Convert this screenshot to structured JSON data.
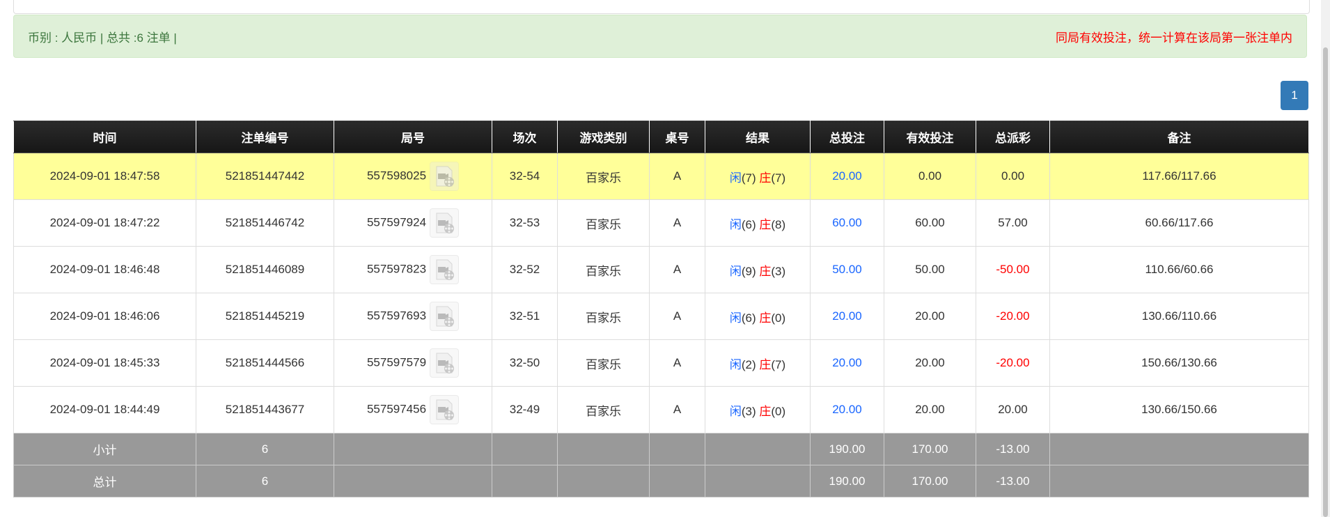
{
  "summary": {
    "left": "币别 : 人民币 | 总共 :6 注单 |",
    "right": "同局有效投注，统一计算在该局第一张注单内"
  },
  "pagination": {
    "current": "1"
  },
  "colors": {
    "header_bg": "#1c1c1c",
    "highlight_row": "#ffff99",
    "summary_bg": "#999999",
    "blue": "#1a66ff",
    "red": "#ff0000",
    "alert_bg": "#dff0d8"
  },
  "table": {
    "headers": [
      "时间",
      "注单编号",
      "局号",
      "场次",
      "游戏类别",
      "桌号",
      "结果",
      "总投注",
      "有效投注",
      "总派彩",
      "备注"
    ],
    "rows": [
      {
        "time": "2024-09-01 18:47:58",
        "bet_id": "521851447442",
        "round": "557598025",
        "session": "32-54",
        "game": "百家乐",
        "table": "A",
        "player": "闲",
        "player_pts": "(7)",
        "banker": "庄",
        "banker_pts": "(7)",
        "total_bet": "20.00",
        "valid_bet": "0.00",
        "payout": "0.00",
        "payout_neg": false,
        "note": "117.66/117.66"
      },
      {
        "time": "2024-09-01 18:47:22",
        "bet_id": "521851446742",
        "round": "557597924",
        "session": "32-53",
        "game": "百家乐",
        "table": "A",
        "player": "闲",
        "player_pts": "(6)",
        "banker": "庄",
        "banker_pts": "(8)",
        "total_bet": "60.00",
        "valid_bet": "60.00",
        "payout": "57.00",
        "payout_neg": false,
        "note": "60.66/117.66"
      },
      {
        "time": "2024-09-01 18:46:48",
        "bet_id": "521851446089",
        "round": "557597823",
        "session": "32-52",
        "game": "百家乐",
        "table": "A",
        "player": "闲",
        "player_pts": "(9)",
        "banker": "庄",
        "banker_pts": "(3)",
        "total_bet": "50.00",
        "valid_bet": "50.00",
        "payout": "-50.00",
        "payout_neg": true,
        "note": "110.66/60.66"
      },
      {
        "time": "2024-09-01 18:46:06",
        "bet_id": "521851445219",
        "round": "557597693",
        "session": "32-51",
        "game": "百家乐",
        "table": "A",
        "player": "闲",
        "player_pts": "(6)",
        "banker": "庄",
        "banker_pts": "(0)",
        "total_bet": "20.00",
        "valid_bet": "20.00",
        "payout": "-20.00",
        "payout_neg": true,
        "note": "130.66/110.66"
      },
      {
        "time": "2024-09-01 18:45:33",
        "bet_id": "521851444566",
        "round": "557597579",
        "session": "32-50",
        "game": "百家乐",
        "table": "A",
        "player": "闲",
        "player_pts": "(2)",
        "banker": "庄",
        "banker_pts": "(7)",
        "total_bet": "20.00",
        "valid_bet": "20.00",
        "payout": "-20.00",
        "payout_neg": true,
        "note": "150.66/130.66"
      },
      {
        "time": "2024-09-01 18:44:49",
        "bet_id": "521851443677",
        "round": "557597456",
        "session": "32-49",
        "game": "百家乐",
        "table": "A",
        "player": "闲",
        "player_pts": "(3)",
        "banker": "庄",
        "banker_pts": "(0)",
        "total_bet": "20.00",
        "valid_bet": "20.00",
        "payout": "20.00",
        "payout_neg": false,
        "note": "130.66/150.66"
      }
    ],
    "subtotal": {
      "label": "小计",
      "count": "6",
      "total_bet": "190.00",
      "valid_bet": "170.00",
      "payout": "-13.00"
    },
    "total": {
      "label": "总计",
      "count": "6",
      "total_bet": "190.00",
      "valid_bet": "170.00",
      "payout": "-13.00"
    }
  }
}
